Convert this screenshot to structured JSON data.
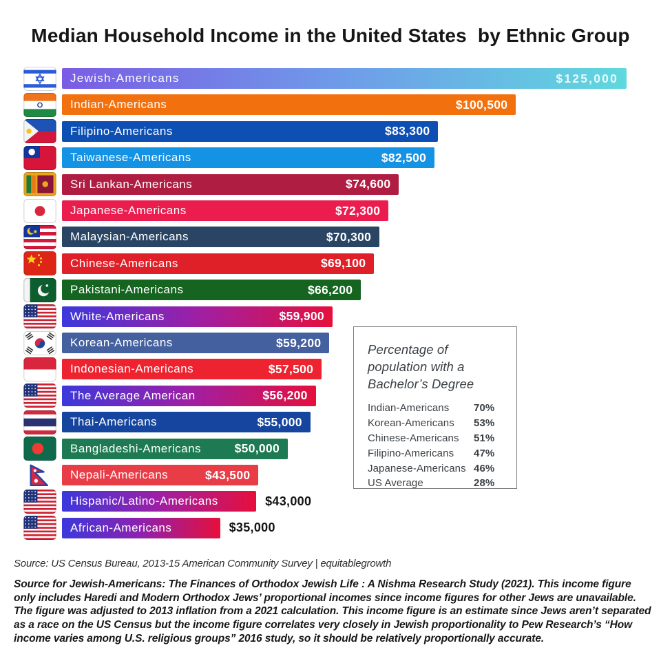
{
  "title": "Median Household Income in the United States  by Ethnic Group",
  "chart_data": {
    "type": "bar",
    "orientation": "horizontal",
    "title": "Median Household Income in the United States by Ethnic Group",
    "unit": "USD",
    "xlim": [
      0,
      125000
    ],
    "categories": [
      "Jewish-Americans",
      "Indian-Americans",
      "Filipino-Americans",
      "Taiwanese-Americans",
      "Sri Lankan-Americans",
      "Japanese-Americans",
      "Malaysian-Americans",
      "Chinese-Americans",
      "Pakistani-Americans",
      "White-Americans",
      "Korean-Americans",
      "Indonesian-Americans",
      "The Average American",
      "Thai-Americans",
      "Bangladeshi-Americans",
      "Nepali-Americans",
      "Hispanic/Latino-Americans",
      "African-Americans"
    ],
    "values": [
      125000,
      100500,
      83300,
      82500,
      74600,
      72300,
      70300,
      69100,
      66200,
      59900,
      59200,
      57500,
      56200,
      55000,
      50000,
      43500,
      43000,
      35000
    ],
    "value_labels": [
      "$125,000",
      "$100,500",
      "$83,300",
      "$82,500",
      "$74,600",
      "$72,300",
      "$70,300",
      "$69,100",
      "$66,200",
      "$59,900",
      "$59,200",
      "$57,500",
      "$56,200",
      "$55,000",
      "$50,000",
      "$43,500",
      "$43,000",
      "$35,000"
    ],
    "bars": [
      {
        "label": "Jewish-Americans",
        "value": 125000,
        "value_label": "$125,000",
        "flag": "israel",
        "colors": [
          "#7a5ce4",
          "#6f9ce9",
          "#5fd8de"
        ],
        "value_placement": "inside",
        "label_spaced": true,
        "value_spaced": true
      },
      {
        "label": "Indian-Americans",
        "value": 100500,
        "value_label": "$100,500",
        "flag": "india",
        "colors": [
          "#f3700e"
        ],
        "value_placement": "inside"
      },
      {
        "label": "Filipino-Americans",
        "value": 83300,
        "value_label": "$83,300",
        "flag": "philippines",
        "colors": [
          "#0d4fb2"
        ],
        "value_placement": "inside"
      },
      {
        "label": "Taiwanese-Americans",
        "value": 82500,
        "value_label": "$82,500",
        "flag": "taiwan",
        "colors": [
          "#1492e4"
        ],
        "value_placement": "inside"
      },
      {
        "label": "Sri Lankan-Americans",
        "value": 74600,
        "value_label": "$74,600",
        "flag": "srilanka",
        "colors": [
          "#b01d42"
        ],
        "value_placement": "inside"
      },
      {
        "label": "Japanese-Americans",
        "value": 72300,
        "value_label": "$72,300",
        "flag": "japan",
        "colors": [
          "#ea1d4e"
        ],
        "value_placement": "inside"
      },
      {
        "label": "Malaysian-Americans",
        "value": 70300,
        "value_label": "$70,300",
        "flag": "malaysia",
        "colors": [
          "#2a4563"
        ],
        "value_placement": "inside"
      },
      {
        "label": "Chinese-Americans",
        "value": 69100,
        "value_label": "$69,100",
        "flag": "china",
        "colors": [
          "#e02029"
        ],
        "value_placement": "inside"
      },
      {
        "label": "Pakistani-Americans",
        "value": 66200,
        "value_label": "$66,200",
        "flag": "pakistan",
        "colors": [
          "#156420"
        ],
        "value_placement": "inside"
      },
      {
        "label": "White-Americans",
        "value": 59900,
        "value_label": "$59,900",
        "flag": "usa",
        "colors": [
          "#3c38dc",
          "#9e1fa5",
          "#e60f3c"
        ],
        "value_placement": "inside"
      },
      {
        "label": "Korean-Americans",
        "value": 59200,
        "value_label": "$59,200",
        "flag": "southkorea",
        "colors": [
          "#44609e"
        ],
        "value_placement": "inside"
      },
      {
        "label": "Indonesian-Americans",
        "value": 57500,
        "value_label": "$57,500",
        "flag": "indonesia",
        "colors": [
          "#ee2330"
        ],
        "value_placement": "inside"
      },
      {
        "label": "The Average American",
        "value": 56200,
        "value_label": "$56,200",
        "flag": "usa",
        "colors": [
          "#3c38dc",
          "#9e1fa5",
          "#e60f3c"
        ],
        "value_placement": "inside"
      },
      {
        "label": "Thai-Americans",
        "value": 55000,
        "value_label": "$55,000",
        "flag": "thailand",
        "colors": [
          "#15459f"
        ],
        "value_placement": "inside"
      },
      {
        "label": "Bangladeshi-Americans",
        "value": 50000,
        "value_label": "$50,000",
        "flag": "bangladesh",
        "colors": [
          "#1e7a52"
        ],
        "value_placement": "inside"
      },
      {
        "label": "Nepali-Americans",
        "value": 43500,
        "value_label": "$43,500",
        "flag": "nepal",
        "colors": [
          "#e83c47"
        ],
        "value_placement": "inside"
      },
      {
        "label": "Hispanic/Latino-Americans",
        "value": 43000,
        "value_label": "$43,000",
        "flag": "usa",
        "colors": [
          "#3c38dc",
          "#9e1fa5",
          "#e60f3c"
        ],
        "value_placement": "outside"
      },
      {
        "label": "African-Americans",
        "value": 35000,
        "value_label": "$35,000",
        "flag": "usa",
        "colors": [
          "#3c38dc",
          "#8e21ad",
          "#e60f3c"
        ],
        "value_placement": "outside"
      }
    ],
    "inset_table": {
      "title": "Percentage of population with a Bachelor’s Degree",
      "items": [
        {
          "label": "Indian-Americans",
          "pct": "70%"
        },
        {
          "label": "Korean-Americans",
          "pct": "53%"
        },
        {
          "label": "Chinese-Americans",
          "pct": "51%"
        },
        {
          "label": "Filipino-Americans",
          "pct": "47%"
        },
        {
          "label": "Japanese-Americans",
          "pct": "46%"
        },
        {
          "label": "US Average",
          "pct": "28%"
        }
      ]
    }
  },
  "source_line": "Source: US Census Bureau, 2013-15 American Community Survey | equitablegrowth",
  "footnote": "Source for Jewish-Americans: The Finances of Orthodox Jewish Life : A Nishma Research Study (2021). This income figure only includes Haredi and Modern Orthodox Jews’ proportional incomes since income figures for other Jews are unavailable. The figure was adjusted to 2013 inflation from a 2021 calculation. This income figure is an estimate since Jews aren’t separated as a race on the US Census but the income figure correlates very closely in Jewish proportionality to Pew Research’s “How income varies among U.S. religious groups” 2016 study, so it should be relatively proportionally accurate.",
  "colors": {
    "background": "#ffffff",
    "value_text_inside": "#ffffff",
    "value_text_outside": "#141414",
    "inset_text": "#3b4045",
    "inset_border": "#7e7e7e"
  }
}
